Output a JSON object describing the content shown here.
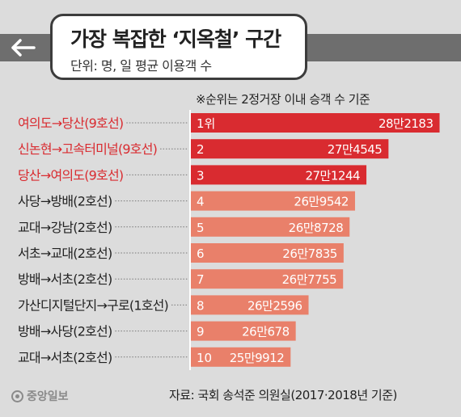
{
  "header": {
    "title": "가장 복잡한 ‘지옥철’ 구간",
    "subtitle": "단위: 명, 일 평균 이용객 수",
    "back_icon": "arrow-left-icon"
  },
  "note": "※순위는 2정거장 이내 승객 수 기준",
  "source": "자료: 국회 송석준 의원실(2017·2018년 기준)",
  "logo": "중앙일보",
  "colors": {
    "highlight_bar": "#d92b30",
    "highlight_label": "#d92b30",
    "normal_bar": "#e9806a",
    "normal_label": "#222222"
  },
  "chart_data": {
    "type": "bar",
    "orientation": "horizontal",
    "title": "가장 복잡한 ‘지옥철’ 구간",
    "subtitle": "단위: 명, 일 평균 이용객 수",
    "xlim": [
      0,
      282000
    ],
    "categories": [
      "여의도→당산(9호선)",
      "신논현→고속터미널(9호선)",
      "당산→여의도(9호선)",
      "사당→방배(2호선)",
      "교대→강남(2호선)",
      "서초→교대(2호선)",
      "방배→서초(2호선)",
      "가산디지털단지→구로(1호선)",
      "방배→사당(2호선)",
      "교대→서초(2호선)"
    ],
    "ranks": [
      "1위",
      "2",
      "3",
      "4",
      "5",
      "6",
      "7",
      "8",
      "9",
      "10"
    ],
    "values": [
      282183,
      274545,
      271244,
      269542,
      268728,
      267835,
      267755,
      262596,
      260678,
      259912
    ],
    "value_labels": [
      "28만2183",
      "27만4545",
      "27만1244",
      "26만9542",
      "26만8728",
      "26만7835",
      "26만7755",
      "26만2596",
      "26만678",
      "25만9912"
    ],
    "highlighted": [
      true,
      true,
      true,
      false,
      false,
      false,
      false,
      false,
      false,
      false
    ]
  }
}
